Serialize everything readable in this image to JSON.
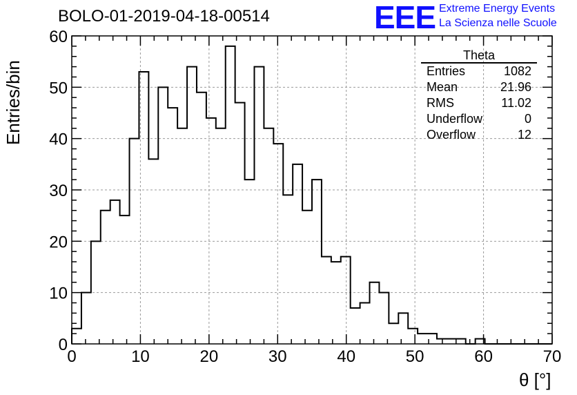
{
  "header": {
    "title": "BOLO-01-2019-04-18-00514"
  },
  "logo": {
    "mark": "EEE",
    "line1": "Extreme Energy Events",
    "line2": "La Scienza nelle Scuole",
    "color": "#1010ff"
  },
  "stats": {
    "title": "Theta",
    "rows": [
      {
        "label": "Entries",
        "value": "1082"
      },
      {
        "label": "Mean",
        "value": "21.96"
      },
      {
        "label": "RMS",
        "value": "11.02"
      },
      {
        "label": "Underflow",
        "value": "0"
      },
      {
        "label": "Overflow",
        "value": "12"
      }
    ]
  },
  "chart_data": {
    "type": "histogram",
    "title": "BOLO-01-2019-04-18-00514",
    "xlabel": "θ [°]",
    "ylabel": "Entries/bin",
    "xlim": [
      0,
      70
    ],
    "ylim": [
      0,
      60
    ],
    "bin_width": 1.4,
    "x_ticks": [
      0,
      10,
      20,
      30,
      40,
      50,
      60,
      70
    ],
    "y_ticks": [
      0,
      10,
      20,
      30,
      40,
      50,
      60
    ],
    "grid": true,
    "line_color": "#000000",
    "values": [
      3,
      10,
      20,
      26,
      28,
      25,
      40,
      53,
      36,
      50,
      46,
      42,
      54,
      49,
      44,
      42,
      58,
      47,
      32,
      54,
      42,
      39,
      29,
      35,
      26,
      32,
      17,
      16,
      17,
      7,
      8,
      12,
      10,
      4,
      6,
      3,
      2,
      2,
      1,
      1,
      1,
      0,
      1,
      0,
      0,
      0,
      0,
      0,
      0,
      0
    ]
  }
}
